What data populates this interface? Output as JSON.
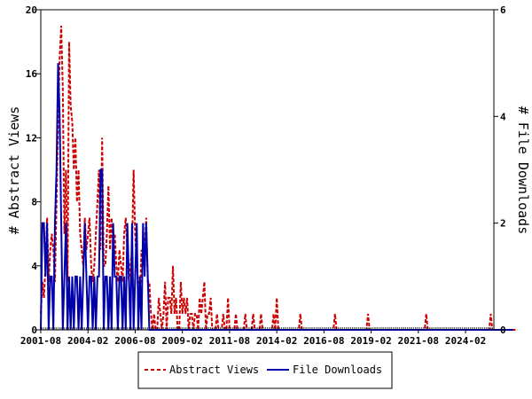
{
  "chart_data": {
    "type": "line",
    "xlabel": "",
    "ylabel": "# Abstract Views",
    "y2label": "# File Downloads",
    "ylim": [
      0,
      20
    ],
    "y2lim": [
      0,
      6
    ],
    "yticks": [
      "0",
      "4",
      "8",
      "12",
      "16",
      "20"
    ],
    "y2ticks": [
      "0",
      "2",
      "4",
      "6"
    ],
    "xticks": [
      "2001-08",
      "2004-02",
      "2006-08",
      "2009-02",
      "2011-08",
      "2014-02",
      "2016-08",
      "2019-02",
      "2021-08",
      "2024-02"
    ],
    "x_start": "2001-08",
    "x_end": "2025-08",
    "grid": false,
    "legend_position": "bottom",
    "series": [
      {
        "name": "Abstract Views",
        "axis": "left",
        "color": "#cc0000",
        "style": "dashed",
        "x_start": "2001-08",
        "values": [
          1,
          3,
          2,
          4,
          7,
          3,
          5,
          6,
          5,
          3,
          8,
          13,
          17,
          19,
          15,
          6,
          10,
          3,
          18,
          14,
          13,
          10,
          12,
          8,
          10,
          6,
          5,
          4,
          7,
          5,
          6,
          7,
          4,
          3,
          4,
          6,
          8,
          10,
          5,
          12,
          4,
          4,
          6,
          9,
          5,
          7,
          5,
          6,
          4,
          3,
          5,
          4,
          3,
          6,
          7,
          5,
          3,
          4,
          5,
          10,
          6,
          4,
          3,
          2,
          5,
          4,
          5,
          7,
          3,
          3,
          1,
          0,
          1,
          0,
          0,
          2,
          1,
          0,
          1,
          3,
          0,
          2,
          2,
          1,
          4,
          1,
          2,
          0,
          0,
          3,
          1,
          2,
          1,
          2,
          0,
          1,
          1,
          0,
          1,
          1,
          0,
          2,
          1,
          2,
          3,
          0,
          1,
          1,
          2,
          0,
          0,
          0,
          1,
          0,
          0,
          0,
          1,
          0,
          0,
          2,
          0,
          0,
          0,
          0,
          1,
          0,
          0,
          0,
          0,
          0,
          1,
          0,
          0,
          0,
          0,
          1,
          0,
          0,
          0,
          0,
          1,
          0,
          0,
          0,
          0,
          0,
          0,
          0,
          1,
          0,
          2,
          0,
          0,
          0,
          0,
          0,
          0,
          0,
          0,
          0,
          0,
          0,
          0,
          0,
          0,
          1,
          0,
          0,
          0,
          0,
          0,
          0,
          0,
          0,
          0,
          0,
          0,
          0,
          0,
          0,
          0,
          0,
          0,
          0,
          0,
          0,
          0,
          1,
          0,
          0,
          0,
          0,
          0,
          0,
          0,
          0,
          0,
          0,
          0,
          0,
          0,
          0,
          0,
          0,
          0,
          0,
          0,
          0,
          1,
          0,
          0,
          0,
          0,
          0,
          0,
          0,
          0,
          0,
          0,
          0,
          0,
          0,
          0,
          0,
          0,
          0,
          0,
          0,
          0,
          0,
          0,
          0,
          0,
          0,
          0,
          0,
          0,
          0,
          0,
          0,
          0,
          0,
          0,
          0,
          0,
          1,
          0,
          0,
          0,
          0,
          0,
          0,
          0,
          0,
          0,
          0,
          0,
          0,
          0,
          0,
          0,
          0,
          0,
          0,
          0,
          0,
          0,
          0,
          0,
          0,
          0,
          0,
          0,
          0,
          0,
          0,
          0,
          0,
          0,
          0,
          0,
          0,
          0,
          0,
          0,
          0,
          1,
          0,
          0,
          0,
          0,
          0,
          0,
          0,
          0,
          0,
          0,
          0,
          0,
          0,
          0,
          0,
          0,
          0
        ]
      },
      {
        "name": "File Downloads",
        "axis": "right",
        "color": "#0000aa",
        "style": "solid",
        "x_start": "2001-08",
        "values": [
          0,
          2,
          2,
          1,
          2,
          0,
          1,
          1,
          0,
          2,
          3,
          5,
          4,
          2,
          0,
          1,
          2,
          0,
          1,
          0,
          1,
          0,
          1,
          1,
          0,
          1,
          0,
          1,
          2,
          1,
          0,
          1,
          1,
          0,
          1,
          0,
          1,
          1,
          3,
          3,
          0,
          1,
          1,
          0,
          1,
          0,
          2,
          1,
          1,
          0,
          1,
          1,
          0,
          1,
          0,
          2,
          1,
          0,
          2,
          0,
          1,
          2,
          0,
          1,
          0,
          2,
          1,
          2,
          1,
          0,
          0,
          0,
          0,
          0,
          0,
          0,
          0,
          0,
          0,
          0,
          0,
          0,
          0,
          0,
          0,
          0,
          0,
          0,
          0,
          0,
          0,
          0,
          0,
          0,
          0,
          0,
          0,
          0,
          0,
          0,
          0,
          0,
          0,
          0,
          0,
          0,
          0,
          0,
          0,
          0,
          0,
          0,
          0,
          0,
          0,
          0,
          0,
          0,
          0,
          0,
          0,
          0,
          0,
          0,
          0,
          0,
          0,
          0,
          0,
          0,
          0,
          0,
          0,
          0,
          0,
          0,
          0,
          0,
          0,
          0,
          0,
          0,
          0,
          0,
          0,
          0,
          0,
          0,
          0,
          0,
          0,
          0,
          0,
          0,
          0,
          0,
          0,
          0,
          0,
          0,
          0,
          0,
          0,
          0,
          0,
          0,
          0,
          0,
          0,
          0,
          0,
          0,
          0,
          0,
          0,
          0,
          0,
          0,
          0,
          0,
          0,
          0,
          0,
          0,
          0,
          0,
          0,
          0,
          0,
          0,
          0,
          0,
          0,
          0,
          0,
          0,
          0,
          0,
          0,
          0,
          0,
          0,
          0,
          0,
          0,
          0,
          0,
          0,
          0,
          0,
          0,
          0,
          0,
          0,
          0,
          0,
          0,
          0,
          0,
          0,
          0,
          0,
          0,
          0,
          0,
          0,
          0,
          0,
          0,
          0,
          0,
          0,
          0,
          0,
          0,
          0,
          0,
          0,
          0,
          0,
          0,
          0,
          0,
          0,
          0,
          0,
          0,
          0,
          0,
          0,
          0,
          0,
          0,
          0,
          0,
          0,
          0,
          0,
          0,
          0,
          0,
          0,
          0,
          0,
          0,
          0,
          0,
          0,
          0,
          0,
          0,
          0,
          0,
          0,
          0,
          0,
          0,
          0,
          0,
          0,
          0,
          0,
          0,
          0,
          0,
          0,
          0,
          0,
          0,
          0,
          0,
          0,
          0,
          0,
          0,
          0,
          0,
          0,
          0,
          0,
          0
        ]
      }
    ]
  }
}
